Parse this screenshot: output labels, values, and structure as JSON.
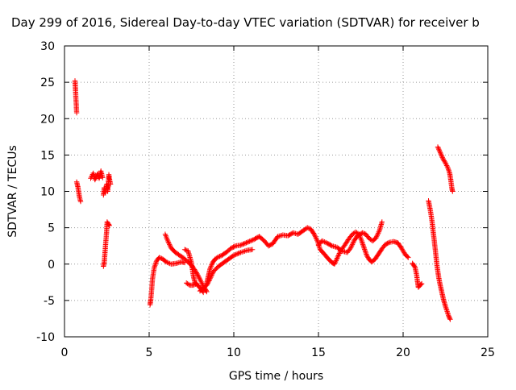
{
  "chart_data": {
    "type": "scatter",
    "title": "Day 299 of 2016, Sidereal Day-to-day VTEC variation (SDTVAR) for receiver b",
    "xlabel": "GPS time / hours",
    "ylabel": "SDTVAR / TECUs",
    "xlim": [
      0,
      25
    ],
    "ylim": [
      -10,
      30
    ],
    "xticks": [
      0,
      5,
      10,
      15,
      20,
      25
    ],
    "yticks": [
      -10,
      -5,
      0,
      5,
      10,
      15,
      20,
      25,
      30
    ],
    "grid": true,
    "marker": "+",
    "color": "#ff0000",
    "series": [
      {
        "segments": [
          [
            [
              0.62,
              25.2
            ],
            [
              0.65,
              24.0
            ],
            [
              0.68,
              22.5
            ],
            [
              0.72,
              20.8
            ]
          ],
          [
            [
              0.72,
              11.3
            ],
            [
              0.8,
              10.5
            ],
            [
              0.88,
              9.3
            ],
            [
              0.95,
              8.6
            ]
          ],
          [
            [
              1.55,
              11.8
            ],
            [
              1.7,
              12.5
            ],
            [
              1.8,
              11.6
            ],
            [
              1.95,
              12.4
            ],
            [
              2.05,
              11.8
            ],
            [
              2.15,
              12.8
            ],
            [
              2.25,
              11.9
            ]
          ],
          [
            [
              2.3,
              9.5
            ],
            [
              2.35,
              10.5
            ],
            [
              2.4,
              9.8
            ],
            [
              2.5,
              11.0
            ],
            [
              2.55,
              10.0
            ],
            [
              2.62,
              12.3
            ],
            [
              2.67,
              11.5
            ],
            [
              2.72,
              11.0
            ]
          ],
          [
            [
              2.3,
              -0.3
            ],
            [
              2.35,
              0.3
            ],
            [
              2.42,
              2.5
            ],
            [
              2.48,
              4.2
            ],
            [
              2.52,
              5.8
            ],
            [
              2.6,
              5.5
            ],
            [
              2.65,
              5.3
            ]
          ],
          [
            [
              5.05,
              -5.6
            ],
            [
              5.1,
              -4.8
            ],
            [
              5.15,
              -3.5
            ],
            [
              5.2,
              -2.0
            ],
            [
              5.3,
              -0.5
            ],
            [
              5.45,
              0.5
            ],
            [
              5.6,
              0.9
            ],
            [
              5.8,
              0.7
            ],
            [
              6.0,
              0.3
            ],
            [
              6.3,
              0.0
            ],
            [
              6.6,
              0.1
            ],
            [
              6.9,
              0.3
            ],
            [
              7.1,
              0.2
            ]
          ],
          [
            [
              5.95,
              4.1
            ],
            [
              6.1,
              3.2
            ],
            [
              6.3,
              2.2
            ],
            [
              6.55,
              1.6
            ],
            [
              6.8,
              1.2
            ],
            [
              7.05,
              0.8
            ],
            [
              7.3,
              0.3
            ],
            [
              7.55,
              -0.3
            ],
            [
              7.8,
              -1.2
            ],
            [
              8.0,
              -2.1
            ],
            [
              8.15,
              -2.8
            ],
            [
              8.3,
              -3.4
            ],
            [
              8.4,
              -3.8
            ]
          ],
          [
            [
              7.1,
              2.0
            ],
            [
              7.3,
              1.8
            ],
            [
              7.5,
              0.2
            ],
            [
              7.6,
              -1.5
            ],
            [
              7.7,
              -2.5
            ],
            [
              7.9,
              -3.0
            ],
            [
              8.1,
              -3.5
            ],
            [
              8.2,
              -3.9
            ]
          ],
          [
            [
              7.2,
              -2.6
            ],
            [
              7.4,
              -2.9
            ],
            [
              7.6,
              -2.9
            ],
            [
              7.8,
              -2.7
            ]
          ],
          [
            [
              8.0,
              -3.7
            ],
            [
              8.2,
              -3.3
            ],
            [
              8.4,
              -2.9
            ],
            [
              8.6,
              -2.0
            ],
            [
              8.8,
              -1.0
            ],
            [
              9.1,
              -0.3
            ],
            [
              9.4,
              0.2
            ],
            [
              9.7,
              0.7
            ],
            [
              10.0,
              1.2
            ],
            [
              10.4,
              1.6
            ],
            [
              10.8,
              1.9
            ],
            [
              11.1,
              2.0
            ]
          ],
          [
            [
              8.4,
              -2.6
            ],
            [
              8.5,
              -1.6
            ],
            [
              8.6,
              -0.6
            ],
            [
              8.75,
              0.2
            ],
            [
              8.9,
              0.7
            ],
            [
              9.1,
              1.0
            ],
            [
              9.3,
              1.2
            ],
            [
              9.6,
              1.7
            ],
            [
              9.85,
              2.2
            ],
            [
              10.1,
              2.5
            ],
            [
              10.4,
              2.6
            ],
            [
              10.8,
              3.0
            ],
            [
              11.2,
              3.4
            ],
            [
              11.5,
              3.8
            ],
            [
              11.8,
              3.2
            ],
            [
              12.05,
              2.5
            ],
            [
              12.3,
              2.8
            ],
            [
              12.6,
              3.8
            ],
            [
              12.9,
              4.0
            ],
            [
              13.2,
              3.9
            ],
            [
              13.5,
              4.3
            ],
            [
              13.8,
              4.1
            ],
            [
              14.1,
              4.6
            ],
            [
              14.35,
              5.0
            ],
            [
              14.55,
              4.8
            ],
            [
              14.75,
              4.1
            ],
            [
              14.95,
              3.1
            ],
            [
              15.1,
              2.0
            ],
            [
              15.3,
              1.5
            ],
            [
              15.55,
              0.8
            ],
            [
              15.8,
              0.2
            ],
            [
              15.95,
              0.0
            ],
            [
              16.1,
              0.8
            ],
            [
              16.3,
              1.8
            ],
            [
              16.55,
              2.6
            ],
            [
              16.8,
              3.5
            ],
            [
              17.0,
              4.1
            ],
            [
              17.2,
              4.4
            ],
            [
              17.4,
              4.1
            ],
            [
              17.55,
              3.2
            ],
            [
              17.7,
              2.2
            ],
            [
              17.85,
              1.2
            ],
            [
              18.0,
              0.6
            ],
            [
              18.15,
              0.3
            ],
            [
              18.35,
              0.7
            ],
            [
              18.55,
              1.4
            ],
            [
              18.75,
              2.1
            ],
            [
              18.95,
              2.7
            ],
            [
              19.2,
              3.0
            ],
            [
              19.45,
              3.1
            ],
            [
              19.7,
              2.9
            ],
            [
              19.9,
              2.2
            ],
            [
              20.1,
              1.4
            ],
            [
              20.3,
              0.9
            ]
          ],
          [
            [
              15.0,
              2.6
            ],
            [
              15.2,
              3.2
            ],
            [
              15.5,
              2.9
            ],
            [
              15.8,
              2.5
            ],
            [
              16.1,
              2.3
            ],
            [
              16.4,
              1.8
            ],
            [
              16.7,
              1.6
            ],
            [
              16.9,
              2.2
            ],
            [
              17.1,
              3.2
            ],
            [
              17.3,
              3.9
            ],
            [
              17.6,
              4.3
            ],
            [
              17.8,
              4.1
            ],
            [
              18.0,
              3.5
            ],
            [
              18.2,
              3.2
            ],
            [
              18.4,
              3.6
            ],
            [
              18.6,
              4.6
            ],
            [
              18.75,
              5.8
            ]
          ],
          [
            [
              20.55,
              0.1
            ],
            [
              20.7,
              -0.4
            ],
            [
              20.8,
              -1.5
            ],
            [
              20.85,
              -2.4
            ],
            [
              20.9,
              -3.2
            ],
            [
              21.0,
              -2.9
            ],
            [
              21.1,
              -2.7
            ]
          ],
          [
            [
              21.5,
              8.7
            ],
            [
              21.6,
              7.5
            ],
            [
              21.7,
              6.0
            ],
            [
              21.8,
              4.0
            ],
            [
              21.9,
              2.0
            ],
            [
              22.0,
              -0.2
            ],
            [
              22.1,
              -1.8
            ],
            [
              22.2,
              -3.0
            ],
            [
              22.3,
              -4.0
            ],
            [
              22.4,
              -5.0
            ],
            [
              22.5,
              -5.8
            ],
            [
              22.6,
              -6.5
            ],
            [
              22.7,
              -7.2
            ],
            [
              22.78,
              -7.6
            ]
          ],
          [
            [
              22.05,
              16.1
            ],
            [
              22.2,
              15.3
            ],
            [
              22.35,
              14.5
            ],
            [
              22.5,
              13.9
            ],
            [
              22.65,
              13.2
            ],
            [
              22.75,
              12.5
            ],
            [
              22.82,
              11.5
            ],
            [
              22.88,
              10.4
            ],
            [
              22.92,
              10.0
            ]
          ]
        ]
      }
    ]
  }
}
